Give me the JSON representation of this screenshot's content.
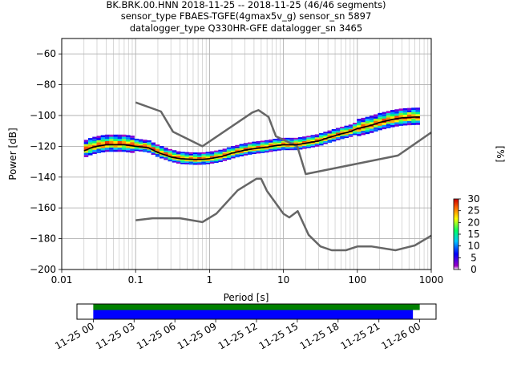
{
  "header": {
    "line1": "BK.BRK.00.HNN   2018-11-25 -- 2018-11-25  (46/46 segments)",
    "line2": "sensor_type FBAES-TGFE(4gmax5v_g) sensor_sn 5897",
    "line3": "datalogger_type Q330HR-GFE datalogger_sn 3465"
  },
  "colorbar": {
    "label": "[%]",
    "ticks": [
      "0",
      "5",
      "10",
      "15",
      "20",
      "25",
      "30"
    ],
    "min": 0,
    "max": 30
  },
  "chart_data": [
    {
      "type": "heatmap",
      "title": "",
      "xlabel": "Period [s]",
      "ylabel": "Power [dB]",
      "xscale": "log",
      "xlim": [
        0.01,
        1000
      ],
      "ylim": [
        -200,
        -50
      ],
      "xticks": [
        "0.01",
        "0.1",
        "1",
        "10",
        "100",
        "1000"
      ],
      "yticks": [
        "−200",
        "−180",
        "−160",
        "−140",
        "−120",
        "−100",
        "−80",
        "−60"
      ],
      "grid": true,
      "colormap": "pqlx",
      "color_range_percent": [
        0,
        30
      ],
      "series": [
        {
          "role": "density-band",
          "x": [
            0.02,
            0.025,
            0.03,
            0.04,
            0.05,
            0.07,
            0.1,
            0.15,
            0.2,
            0.3,
            0.4,
            0.6,
            0.8,
            1,
            1.5,
            2,
            3,
            4,
            6,
            8,
            10,
            15,
            20,
            30,
            40,
            60,
            80,
            100,
            150,
            200,
            300,
            400,
            600,
            700
          ],
          "values": [
            -122,
            -120,
            -119,
            -118,
            -118,
            -118,
            -119,
            -120,
            -123,
            -126,
            -127.5,
            -128,
            -128,
            -127.5,
            -126,
            -124,
            -122,
            -121,
            -120,
            -119,
            -118.5,
            -118.5,
            -117.5,
            -116,
            -114,
            -111.5,
            -110,
            -108,
            -106,
            -104,
            -102,
            -101,
            -100.5,
            -100.5
          ]
        },
        {
          "role": "mean",
          "x": [
            0.02,
            0.025,
            0.03,
            0.04,
            0.05,
            0.07,
            0.1,
            0.15,
            0.2,
            0.3,
            0.4,
            0.6,
            0.8,
            1,
            1.5,
            2,
            3,
            4,
            6,
            8,
            10,
            15,
            20,
            30,
            40,
            60,
            80,
            100,
            150,
            200,
            300,
            400,
            600,
            700
          ],
          "values": [
            -123,
            -121,
            -120,
            -119,
            -119,
            -119,
            -120,
            -121,
            -124,
            -127,
            -128,
            -128.5,
            -128.5,
            -128,
            -126.5,
            -124.5,
            -122.5,
            -121.5,
            -120.5,
            -119.5,
            -119,
            -119,
            -118,
            -116.5,
            -114.5,
            -112,
            -110.5,
            -108.5,
            -106.5,
            -104.5,
            -102.5,
            -101.5,
            -101,
            -101
          ]
        },
        {
          "role": "high-noise-model",
          "x": [
            0.1,
            0.22,
            0.32,
            0.8,
            3.8,
            4.6,
            6.3,
            7.9,
            15.4,
            20,
            354.8,
            1000
          ],
          "values": [
            -91.5,
            -97.4,
            -110.5,
            -120,
            -98,
            -96.5,
            -101,
            -113.5,
            -120,
            -138,
            -126,
            -111
          ]
        },
        {
          "role": "low-noise-model",
          "x": [
            0.1,
            0.17,
            0.4,
            0.8,
            1.24,
            2.4,
            4.3,
            5,
            6,
            10,
            12,
            15.6,
            21.9,
            31.6,
            45,
            70,
            101,
            154,
            328,
            600,
            1000
          ],
          "values": [
            -168,
            -166.7,
            -166.7,
            -169.2,
            -163.7,
            -148.6,
            -141.1,
            -141.1,
            -149,
            -163.8,
            -166.2,
            -162.1,
            -177.5,
            -185,
            -187.5,
            -187.5,
            -185,
            -185,
            -187.5,
            -184.4,
            -178
          ]
        }
      ]
    },
    {
      "type": "timeline",
      "x_ticks": [
        "11-25 00",
        "11-25 03",
        "11-25 06",
        "11-25 09",
        "11-25 12",
        "11-25 15",
        "11-25 18",
        "11-25 21",
        "11-26 00"
      ],
      "x_range_hours": [
        -1.2,
        25.2
      ],
      "series": [
        {
          "role": "data-coverage",
          "color": "#008000",
          "start_hour": 0.0,
          "end_hour": 24.0
        },
        {
          "role": "psd-coverage",
          "color": "#0000ff",
          "start_hour": 0.0,
          "end_hour": 23.5
        }
      ]
    }
  ]
}
